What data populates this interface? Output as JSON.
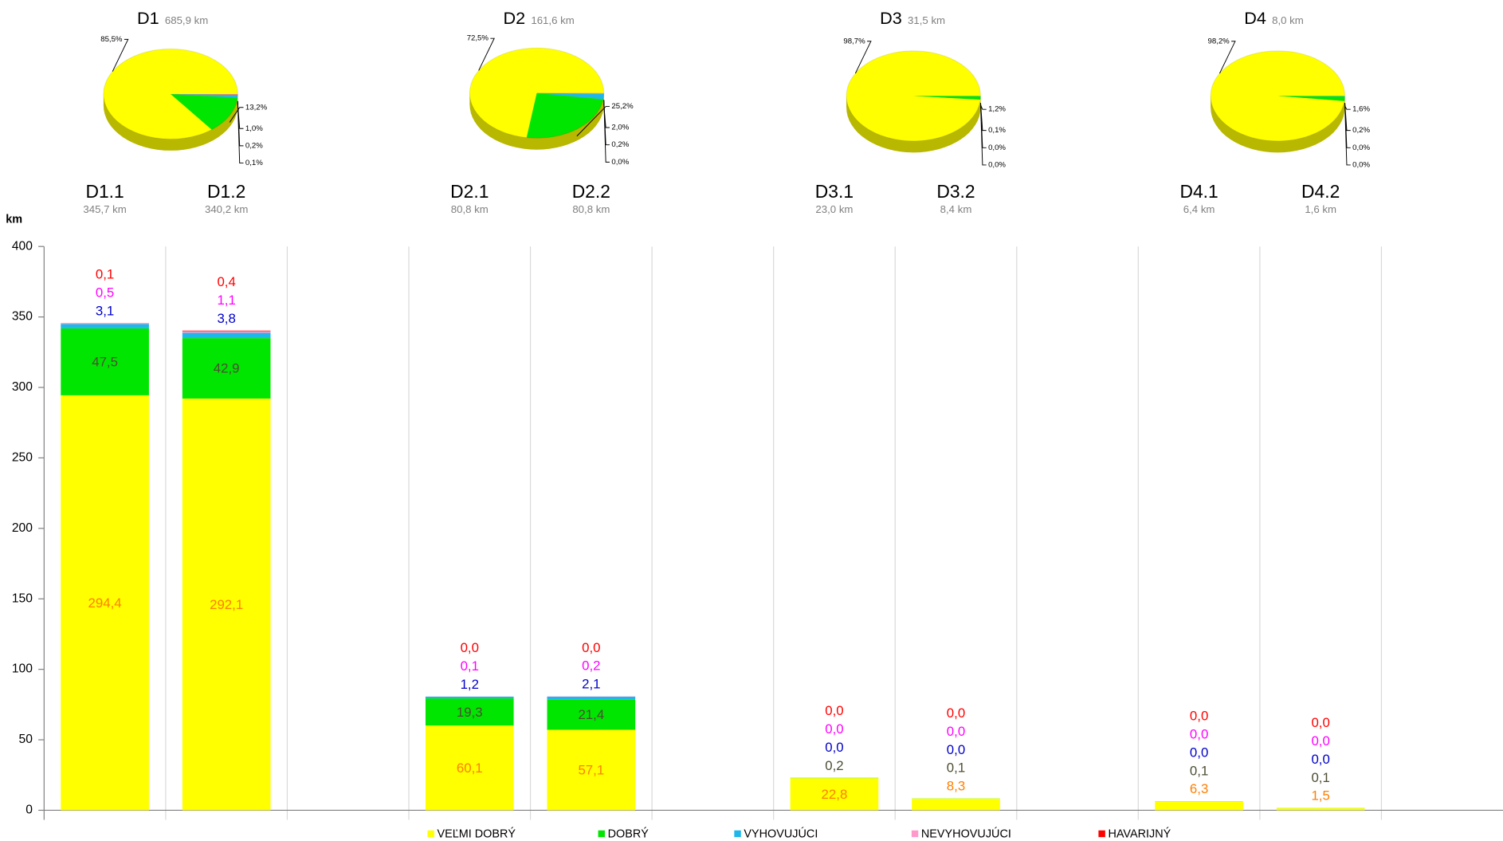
{
  "chart_data": [
    {
      "type": "pie",
      "title": "D1",
      "subtitle": "685,9 km",
      "values": [
        85.5,
        13.2,
        1.0,
        0.2,
        0.1
      ],
      "value_labels": [
        "85,5%",
        "13,2%",
        "1,0%",
        "0,2%",
        "0,1%"
      ],
      "colors": [
        "#ffff00",
        "#00e600",
        "#1fb7ea",
        "#ff99cc",
        "#ff0000"
      ]
    },
    {
      "type": "pie",
      "title": "D2",
      "subtitle": "161,6 km",
      "values": [
        72.5,
        25.2,
        2.0,
        0.2,
        0.0
      ],
      "value_labels": [
        "72,5%",
        "25,2%",
        "2,0%",
        "0,2%",
        "0,0%"
      ],
      "colors": [
        "#ffff00",
        "#00e600",
        "#1fb7ea",
        "#ff99cc",
        "#ff0000"
      ]
    },
    {
      "type": "pie",
      "title": "D3",
      "subtitle": "31,5 km",
      "values": [
        98.7,
        1.2,
        0.1,
        0.0,
        0.0
      ],
      "value_labels": [
        "98,7%",
        "1,2%",
        "0,1%",
        "0,0%",
        "0,0%"
      ],
      "colors": [
        "#ffff00",
        "#00e600",
        "#1fb7ea",
        "#ff99cc",
        "#ff0000"
      ]
    },
    {
      "type": "pie",
      "title": "D4",
      "subtitle": "8,0 km",
      "values": [
        98.2,
        1.6,
        0.2,
        0.0,
        0.0
      ],
      "value_labels": [
        "98,2%",
        "1,6%",
        "0,2%",
        "0,0%",
        "0,0%"
      ],
      "colors": [
        "#ffff00",
        "#00e600",
        "#1fb7ea",
        "#ff99cc",
        "#ff0000"
      ]
    },
    {
      "type": "bar",
      "stacked": true,
      "y_label": "km",
      "categories": [
        "D1.1",
        "D1.2",
        null,
        "D2.1",
        "D2.2",
        null,
        "D3.1",
        "D3.2",
        null,
        "D4.1",
        "D4.2",
        null
      ],
      "category_subtitles": [
        "345,7 km",
        "340,2 km",
        null,
        "80,8 km",
        "80,8 km",
        null,
        "23,0 km",
        "8,4 km",
        null,
        "6,4 km",
        "1,6 km",
        null
      ],
      "series": [
        {
          "name": "VEĽMI DOBRÝ",
          "color": "#ffff00",
          "label_color": "#ff7f00",
          "values": [
            294.4,
            292.1,
            null,
            60.1,
            57.1,
            null,
            22.8,
            8.3,
            null,
            6.3,
            1.5,
            null
          ],
          "value_labels": [
            "294,4",
            "292,1",
            null,
            "60,1",
            "57,1",
            null,
            "22,8",
            "8,3",
            null,
            "6,3",
            "1,5",
            null
          ]
        },
        {
          "name": "DOBRÝ",
          "color": "#00e600",
          "label_color": "#4d4d33",
          "values": [
            47.5,
            42.9,
            null,
            19.3,
            21.4,
            null,
            0.2,
            0.1,
            null,
            0.1,
            0.1,
            null
          ],
          "value_labels": [
            "47,5",
            "42,9",
            null,
            "19,3",
            "21,4",
            null,
            "0,2",
            "0,1",
            null,
            "0,1",
            "0,1",
            null
          ]
        },
        {
          "name": "VYHOVUJÚCI",
          "color": "#1fb7ea",
          "label_color": "#0000cc",
          "values": [
            3.1,
            3.8,
            null,
            1.2,
            2.1,
            null,
            0.0,
            0.0,
            null,
            0.0,
            0.0,
            null
          ],
          "value_labels": [
            "3,1",
            "3,8",
            null,
            "1,2",
            "2,1",
            null,
            "0,0",
            "0,0",
            null,
            "0,0",
            "0,0",
            null
          ]
        },
        {
          "name": "NEVYHOVUJÚCI",
          "color": "#ff99cc",
          "label_color": "#ff00ff",
          "values": [
            0.5,
            1.1,
            null,
            0.1,
            0.2,
            null,
            0.0,
            0.0,
            null,
            0.0,
            0.0,
            null
          ],
          "value_labels": [
            "0,5",
            "1,1",
            null,
            "0,1",
            "0,2",
            null,
            "0,0",
            "0,0",
            null,
            "0,0",
            "0,0",
            null
          ]
        },
        {
          "name": "HAVARIJNÝ",
          "color": "#ff0000",
          "label_color": "#ff0000",
          "values": [
            0.1,
            0.4,
            null,
            0.0,
            0.0,
            null,
            0.0,
            0.0,
            null,
            0.0,
            0.0,
            null
          ],
          "value_labels": [
            "0,1",
            "0,4",
            null,
            "0,0",
            "0,0",
            null,
            "0,0",
            "0,0",
            null,
            "0,0",
            "0,0",
            null
          ]
        }
      ],
      "ylim": [
        0,
        400
      ],
      "yticks": [
        0,
        50,
        100,
        150,
        200,
        250,
        300,
        350,
        400
      ],
      "grid": "x",
      "legend": "bottom"
    }
  ]
}
